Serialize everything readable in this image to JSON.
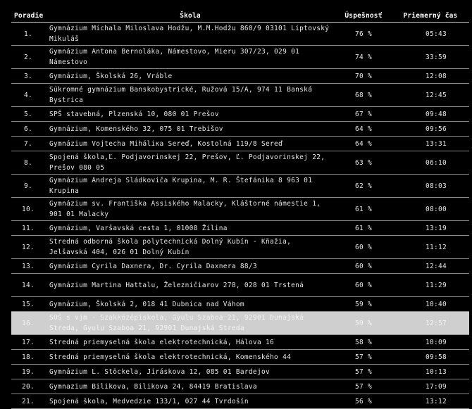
{
  "headers": {
    "rank": "Poradie",
    "school": "Škola",
    "rate": "Úspešnosť",
    "time": "Priemerný čas"
  },
  "rows": [
    {
      "rank": "1.",
      "school": "Gymnázium Michala Miloslava Hodžu, M.M.Hodžu 860/9 03101 Liptovský Mikuláš",
      "rate": "76 %",
      "time": "05:43",
      "lines": 2
    },
    {
      "rank": "2.",
      "school": "Gymnázium Antona Bernoláka, Námestovo, Mieru 307/23, 029 01 Námestovo",
      "rate": "74 %",
      "time": "33:59",
      "lines": 2
    },
    {
      "rank": "3.",
      "school": "Gymnázium, Školská 26, Vráble",
      "rate": "70 %",
      "time": "12:08",
      "lines": 1
    },
    {
      "rank": "4.",
      "school": "Súkromné gymnázium Banskobystrické, Ružová 15/A, 974 11 Banská Bystrica",
      "rate": "68 %",
      "time": "12:45",
      "lines": 2
    },
    {
      "rank": "5.",
      "school": "SPŠ stavebná, Plzenská 10, 080 01 Prešov",
      "rate": "67 %",
      "time": "09:48",
      "lines": 1
    },
    {
      "rank": "6.",
      "school": "Gymnázium, Komenského 32, 075 01 Trebišov",
      "rate": "64 %",
      "time": "09:56",
      "lines": 1
    },
    {
      "rank": "7.",
      "school": "Gymnázium Vojtecha Miháliка Sereď, Kostolná 119/8 Sereď",
      "rate": "64 %",
      "time": "13:31",
      "lines": 1
    },
    {
      "rank": "8.",
      "school": "Spojená škola,Ľ. Podjavorinskej 22, Prešov, Ľ. Podjavorinskej 22, Prešov 080 05",
      "rate": "63 %",
      "time": "06:10",
      "lines": 2
    },
    {
      "rank": "9.",
      "school": "Gymnázium Andreja Sládkoviča Krupina, M. R. Štefánika 8 963 01 Krupina",
      "rate": "62 %",
      "time": "08:03",
      "lines": 2
    },
    {
      "rank": "10.",
      "school": "Gymnázium sv. Františka Assiského Malacky, Kláštorné námestie 1, 901 01 Malacky",
      "rate": "61 %",
      "time": "08:00",
      "lines": 2
    },
    {
      "rank": "11.",
      "school": "Gymnázium, Varšavská cesta 1, 01008 Žilina",
      "rate": "61 %",
      "time": "13:19",
      "lines": 1
    },
    {
      "rank": "12.",
      "school": "Stredná odborná škola polytechnická Dolný Kubín - Kňažia, Jelšavská 404, 026 01 Dolný Kubín",
      "rate": "60 %",
      "time": "11:12",
      "lines": 2
    },
    {
      "rank": "13.",
      "school": "Gymnázium Cyrila Daxnera, Dr. Cyrila Daxnera 88/3",
      "rate": "60 %",
      "time": "12:44",
      "lines": 1
    },
    {
      "rank": "14.",
      "school": "Gymnázium Martina Hattalu, Železničiarov 278, 028 01 Trstená",
      "rate": "60 %",
      "time": "11:29",
      "lines": 2
    },
    {
      "rank": "15.",
      "school": "Gymnázium, Školská 2, 018 41 Dubnica nad Váhom",
      "rate": "59 %",
      "time": "10:40",
      "lines": 1
    },
    {
      "rank": "16.",
      "school": "SOŠ s vjm - Szakközépiskola, Gyulu Szaboa 21, 92901 Dunajská Streda, Gyulu Szaboa 21, 92901 Dunajská Streda",
      "rate": "59 %",
      "time": "12:57",
      "lines": 2,
      "highlight": true
    },
    {
      "rank": "17.",
      "school": "Stredná priemyselná škola elektrotechnická, Hálova 16",
      "rate": "58 %",
      "time": "10:09",
      "lines": 1
    },
    {
      "rank": "18.",
      "school": "Stredná priemyselná škola elektrotechnická, Komenského 44",
      "rate": "57 %",
      "time": "09:58",
      "lines": 1
    },
    {
      "rank": "19.",
      "school": "Gymnázium L. Stöckela, Jiráskova 12, 085 01 Bardejov",
      "rate": "57 %",
      "time": "10:13",
      "lines": 1
    },
    {
      "rank": "20.",
      "school": "Gymnazium Bilikova, Bilikova 24, 84419 Bratislava",
      "rate": "57 %",
      "time": "17:09",
      "lines": 1
    },
    {
      "rank": "21.",
      "school": "Spojená škola, Medvedzie 133/1, 027 44 Tvrdošín",
      "rate": "56 %",
      "time": "13:12",
      "lines": 1
    }
  ],
  "colors": {
    "background": "#000000",
    "text": "#e6e6e6",
    "highlight_row": "#cfcfcf",
    "divider": "#8a8a8a"
  }
}
